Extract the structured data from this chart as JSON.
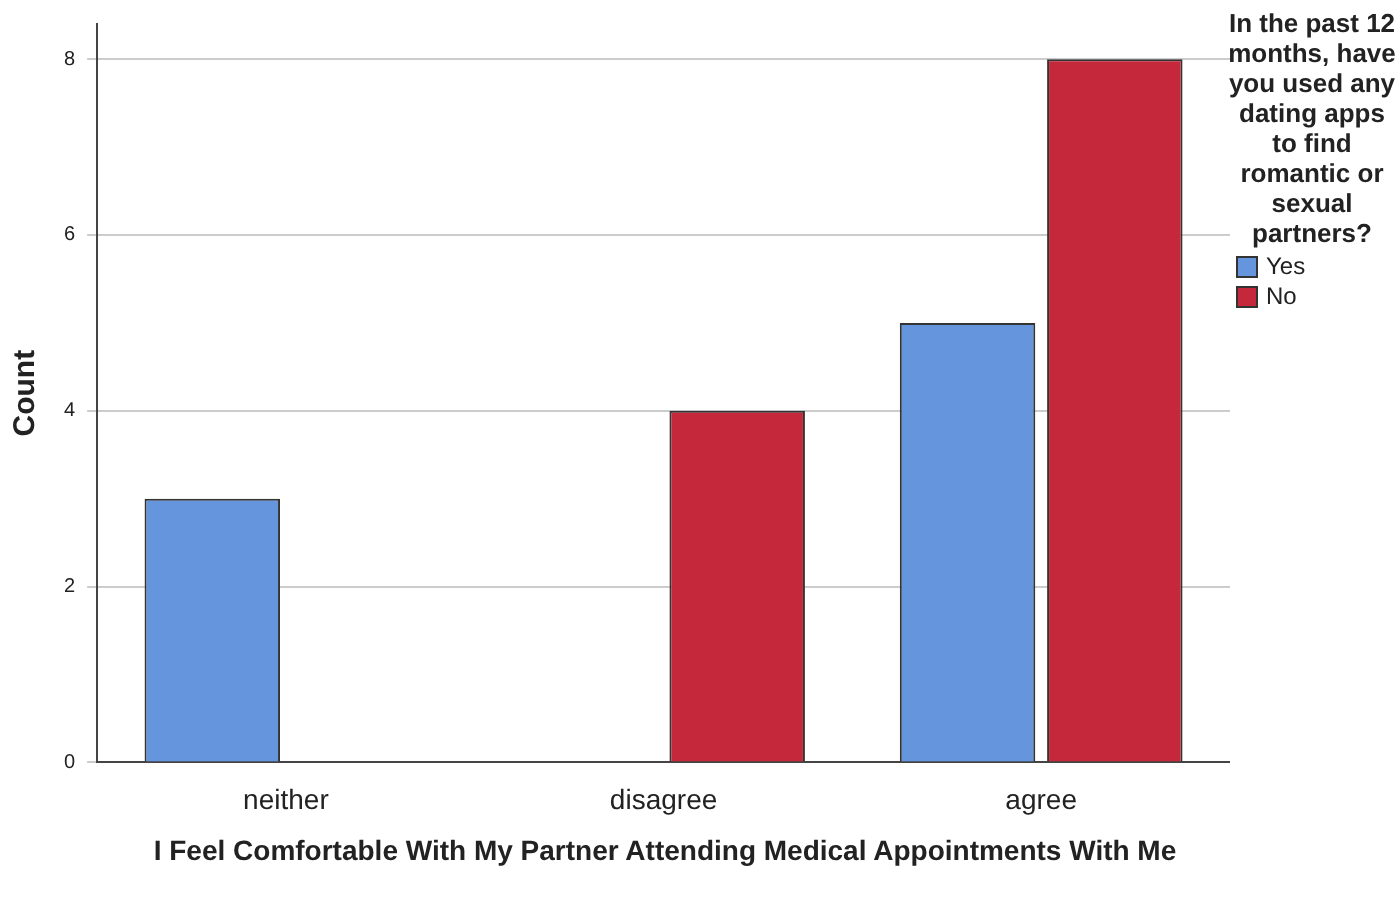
{
  "chart_data": {
    "type": "bar",
    "xlabel": "I Feel Comfortable With My Partner Attending Medical Appointments With Me",
    "ylabel": "Count",
    "legend_title": "In the past 12 months, have you used any dating apps to find romantic or sexual partners?",
    "categories": [
      "neither",
      "disagree",
      "agree"
    ],
    "series": [
      {
        "name": "Yes",
        "color": "#6495dd",
        "values": [
          3,
          null,
          5
        ]
      },
      {
        "name": "No",
        "color": "#c4283a",
        "values": [
          null,
          4,
          8
        ]
      }
    ],
    "ylim": [
      0,
      8.4
    ],
    "yticks": [
      0,
      2,
      4,
      6,
      8
    ],
    "grid": "y",
    "legend": "right"
  }
}
